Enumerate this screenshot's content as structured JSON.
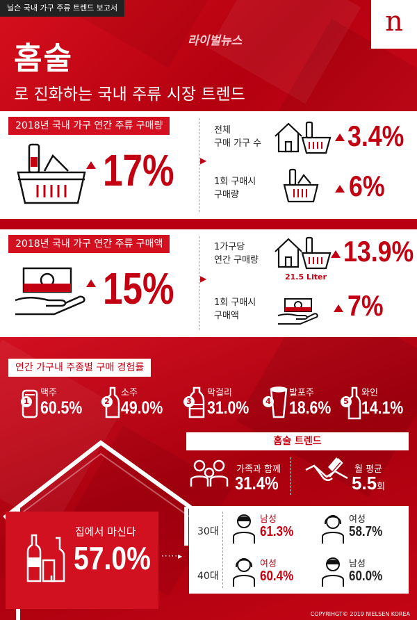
{
  "header": {
    "tag": "닐슨 국내 가구 주류 트렌드 보고서",
    "press": "라이벌뉴스",
    "title": "홈술",
    "subtitle": "로 진화하는 국내 주류 시장 트렌드",
    "logo": "n"
  },
  "volume": {
    "label": "2018년 국내 가구 연간 주류 구매량",
    "pct": "17%",
    "stat1_label_line1": "전체",
    "stat1_label_line2": "구매 가구 수",
    "stat1_pct": "3.4%",
    "stat2_label_line1": "1회 구매시",
    "stat2_label_line2": "구매량",
    "stat2_pct": "6%"
  },
  "amount": {
    "label": "2018년 국내 가구 연간 주류 구매액",
    "pct": "15%",
    "stat1_label_line1": "1가구당",
    "stat1_label_line2": "연간 구매량",
    "stat1_sub": "21.5 Liter",
    "stat1_pct": "13.9%",
    "stat2_label_line1": "1회 구매시",
    "stat2_label_line2": "구매액",
    "stat2_pct": "7%"
  },
  "experience": {
    "title": "연간 가구내 주종별 구매 경험률",
    "items": [
      {
        "rank": "1",
        "name": "맥주",
        "pct": "60.5%"
      },
      {
        "rank": "2",
        "name": "소주",
        "pct": "49.0%"
      },
      {
        "rank": "3",
        "name": "막걸리",
        "pct": "31.0%"
      },
      {
        "rank": "4",
        "name": "발포주",
        "pct": "18.6%"
      },
      {
        "rank": "5",
        "name": "와인",
        "pct": "14.1%"
      }
    ]
  },
  "trend": {
    "title": "홈술 트렌드",
    "family_label": "가족과 함께",
    "family_pct": "31.4%",
    "monthly_label": "월 평균",
    "monthly_value": "5.5",
    "monthly_unit": "회",
    "home_label": "집에서 마신다",
    "home_pct": "57.0%"
  },
  "age": {
    "row1": {
      "age": "30대",
      "g1": "남성",
      "g1_pct": "61.3%",
      "g2": "여성",
      "g2_pct": "58.7%"
    },
    "row2": {
      "age": "40대",
      "g1": "여성",
      "g1_pct": "60.4%",
      "g2": "남성",
      "g2_pct": "60.0%"
    }
  },
  "copyright": "COPYRIHGT© 2019 NIELSEN KOREA",
  "colors": {
    "brand_red": "#c20012",
    "white": "#ffffff",
    "dark": "#222222"
  }
}
